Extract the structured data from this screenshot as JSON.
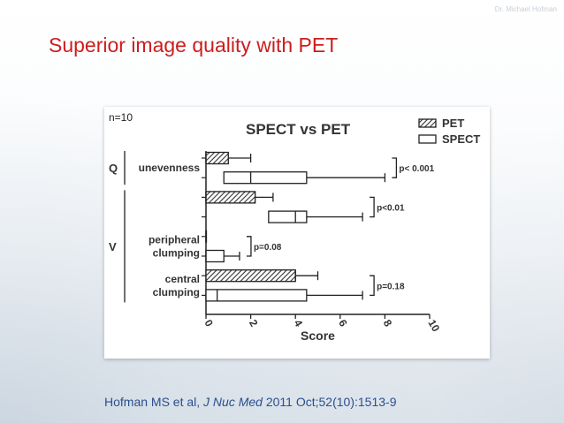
{
  "watermark": "Dr. Michael Hofman",
  "slide_title": "Superior image quality with PET",
  "citation": {
    "authors": "Hofman MS et al, ",
    "journal": "J Nuc Med",
    "details": " 2011 Oct;52(10):1513-9"
  },
  "colors": {
    "title": "#cc1e1e",
    "citation": "#2a4f8f"
  },
  "chart_data": {
    "type": "boxplot",
    "title": "SPECT vs PET",
    "annotation": "n=10",
    "xlabel": "Score",
    "xlim": [
      0,
      10
    ],
    "x_ticks": [
      "0",
      "2",
      "4",
      "6",
      "8",
      "10"
    ],
    "legend": {
      "position": "top-right",
      "entries": [
        "PET",
        "SPECT"
      ]
    },
    "group_labels": [
      {
        "label": "Q",
        "rows": [
          0,
          1
        ]
      },
      {
        "label": "V",
        "rows": [
          2,
          7
        ]
      }
    ],
    "row_labels": [
      {
        "text": [
          "unevenness"
        ],
        "rows": [
          0,
          1
        ]
      },
      {
        "text": [
          "peripheral",
          "clumping"
        ],
        "rows": [
          4,
          5
        ]
      },
      {
        "text": [
          "central",
          "clumping"
        ],
        "rows": [
          6,
          7
        ]
      }
    ],
    "rows": [
      {
        "series": "PET",
        "min": 0,
        "q1": 0,
        "median": 0,
        "q3": 1,
        "max": 2
      },
      {
        "series": "SPECT",
        "min": 0,
        "q1": 0.8,
        "median": 2,
        "q3": 4.5,
        "max": 8
      },
      {
        "series": "PET",
        "min": 0,
        "q1": 0,
        "median": 0,
        "q3": 2.2,
        "max": 3
      },
      {
        "series": "SPECT",
        "min": 0,
        "q1": 2.8,
        "median": 4,
        "q3": 4.5,
        "max": 7
      },
      {
        "series": "PET",
        "min": 0,
        "q1": 0,
        "median": 0,
        "q3": 0,
        "max": 0
      },
      {
        "series": "SPECT",
        "min": 0,
        "q1": 0,
        "median": 0,
        "q3": 0.8,
        "max": 1.5
      },
      {
        "series": "PET",
        "min": 0,
        "q1": 0,
        "median": 4,
        "q3": 4,
        "max": 5
      },
      {
        "series": "SPECT",
        "min": 0,
        "q1": 0,
        "median": 0.5,
        "q3": 4.5,
        "max": 7
      }
    ],
    "significance": [
      {
        "rows": [
          0,
          1
        ],
        "label": "p< 0.001"
      },
      {
        "rows": [
          2,
          3
        ],
        "label": "p<0.01"
      },
      {
        "rows": [
          4,
          5
        ],
        "label": "p=0.08"
      },
      {
        "rows": [
          6,
          7
        ],
        "label": "p=0.18"
      }
    ]
  }
}
